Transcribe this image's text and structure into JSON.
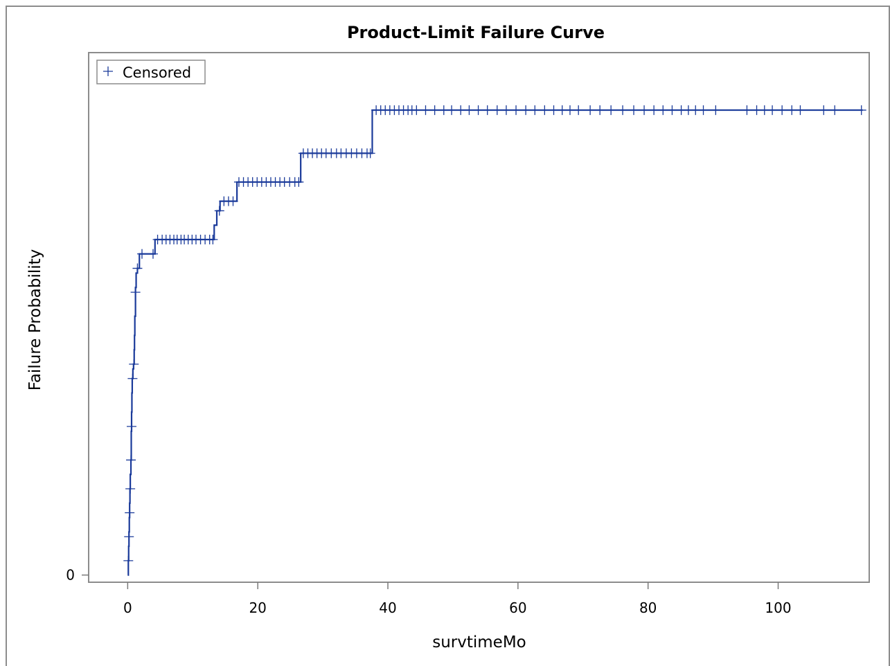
{
  "chart_data": {
    "type": "line",
    "step": "post",
    "title": "Product-Limit Failure Curve",
    "xlabel": "survtimeMo",
    "ylabel": "Failure Probability",
    "xlim": [
      -6,
      114
    ],
    "x_ticks": [
      0,
      20,
      40,
      60,
      80,
      100
    ],
    "y_ticks": [
      0
    ],
    "ylim": [
      -0.015,
      1.09
    ],
    "grid": false,
    "legend": {
      "position": "top-left",
      "entries": [
        "Censored"
      ]
    },
    "series": [
      {
        "x": [
          0,
          0.1,
          0.15,
          0.2,
          0.25,
          0.3,
          0.35,
          0.4,
          0.5,
          0.55,
          0.6,
          0.65,
          0.7,
          0.8,
          0.9,
          1.0,
          1.05,
          1.1,
          1.2,
          1.3,
          1.5,
          1.8,
          4.2,
          13.3,
          13.7,
          14.2,
          16.8,
          26.6,
          37.6,
          113
        ],
        "y": [
          0,
          0.03,
          0.06,
          0.09,
          0.12,
          0.15,
          0.18,
          0.21,
          0.24,
          0.3,
          0.34,
          0.38,
          0.41,
          0.43,
          0.44,
          0.47,
          0.5,
          0.54,
          0.6,
          0.63,
          0.64,
          0.67,
          0.7,
          0.73,
          0.76,
          0.78,
          0.82,
          0.88,
          0.97,
          0.97
        ]
      }
    ],
    "censored": {
      "name": "Censored",
      "x": [
        0.1,
        0.2,
        0.3,
        0.4,
        0.5,
        0.6,
        0.75,
        0.95,
        1.2,
        1.5,
        2.2,
        3.9,
        4.6,
        5.3,
        5.9,
        6.5,
        7.1,
        7.6,
        8.2,
        8.7,
        9.3,
        9.9,
        10.5,
        11.2,
        11.9,
        12.6,
        13.1,
        14.1,
        14.8,
        15.5,
        16.2,
        17.1,
        17.8,
        18.5,
        19.2,
        19.9,
        20.6,
        21.3,
        22.0,
        22.7,
        23.4,
        24.1,
        24.9,
        25.7,
        26.3,
        27.0,
        27.7,
        28.4,
        29.1,
        29.8,
        30.5,
        31.3,
        32.1,
        32.8,
        33.6,
        34.4,
        35.2,
        36.0,
        36.8,
        37.3,
        38.2,
        38.9,
        39.6,
        40.3,
        41.0,
        41.7,
        42.4,
        43.1,
        43.7,
        44.4,
        45.8,
        47.2,
        48.6,
        49.8,
        51.2,
        52.5,
        53.9,
        55.3,
        56.8,
        58.2,
        59.7,
        61.2,
        62.6,
        64.1,
        65.5,
        66.8,
        68.0,
        69.3,
        71.1,
        72.6,
        74.3,
        76.1,
        77.8,
        79.4,
        80.9,
        82.3,
        83.7,
        85.1,
        86.2,
        87.3,
        88.5,
        90.4,
        95.2,
        96.7,
        97.9,
        99.1,
        100.6,
        102.1,
        103.4,
        107.0,
        108.7,
        112.8
      ],
      "y": [
        0.03,
        0.08,
        0.13,
        0.18,
        0.24,
        0.31,
        0.41,
        0.44,
        0.59,
        0.64,
        0.67,
        0.67,
        0.7,
        0.7,
        0.7,
        0.7,
        0.7,
        0.7,
        0.7,
        0.7,
        0.7,
        0.7,
        0.7,
        0.7,
        0.7,
        0.7,
        0.7,
        0.76,
        0.78,
        0.78,
        0.78,
        0.82,
        0.82,
        0.82,
        0.82,
        0.82,
        0.82,
        0.82,
        0.82,
        0.82,
        0.82,
        0.82,
        0.82,
        0.82,
        0.82,
        0.88,
        0.88,
        0.88,
        0.88,
        0.88,
        0.88,
        0.88,
        0.88,
        0.88,
        0.88,
        0.88,
        0.88,
        0.88,
        0.88,
        0.88,
        0.97,
        0.97,
        0.97,
        0.97,
        0.97,
        0.97,
        0.97,
        0.97,
        0.97,
        0.97,
        0.97,
        0.97,
        0.97,
        0.97,
        0.97,
        0.97,
        0.97,
        0.97,
        0.97,
        0.97,
        0.97,
        0.97,
        0.97,
        0.97,
        0.97,
        0.97,
        0.97,
        0.97,
        0.97,
        0.97,
        0.97,
        0.97,
        0.97,
        0.97,
        0.97,
        0.97,
        0.97,
        0.97,
        0.97,
        0.97,
        0.97,
        0.97,
        0.97,
        0.97,
        0.97,
        0.97,
        0.97,
        0.97,
        0.97,
        0.97,
        0.97,
        0.97
      ]
    },
    "colors": {
      "line": "#1a3a9a",
      "frame": "#8c8c8c",
      "axis": "#7a7a7a"
    }
  }
}
